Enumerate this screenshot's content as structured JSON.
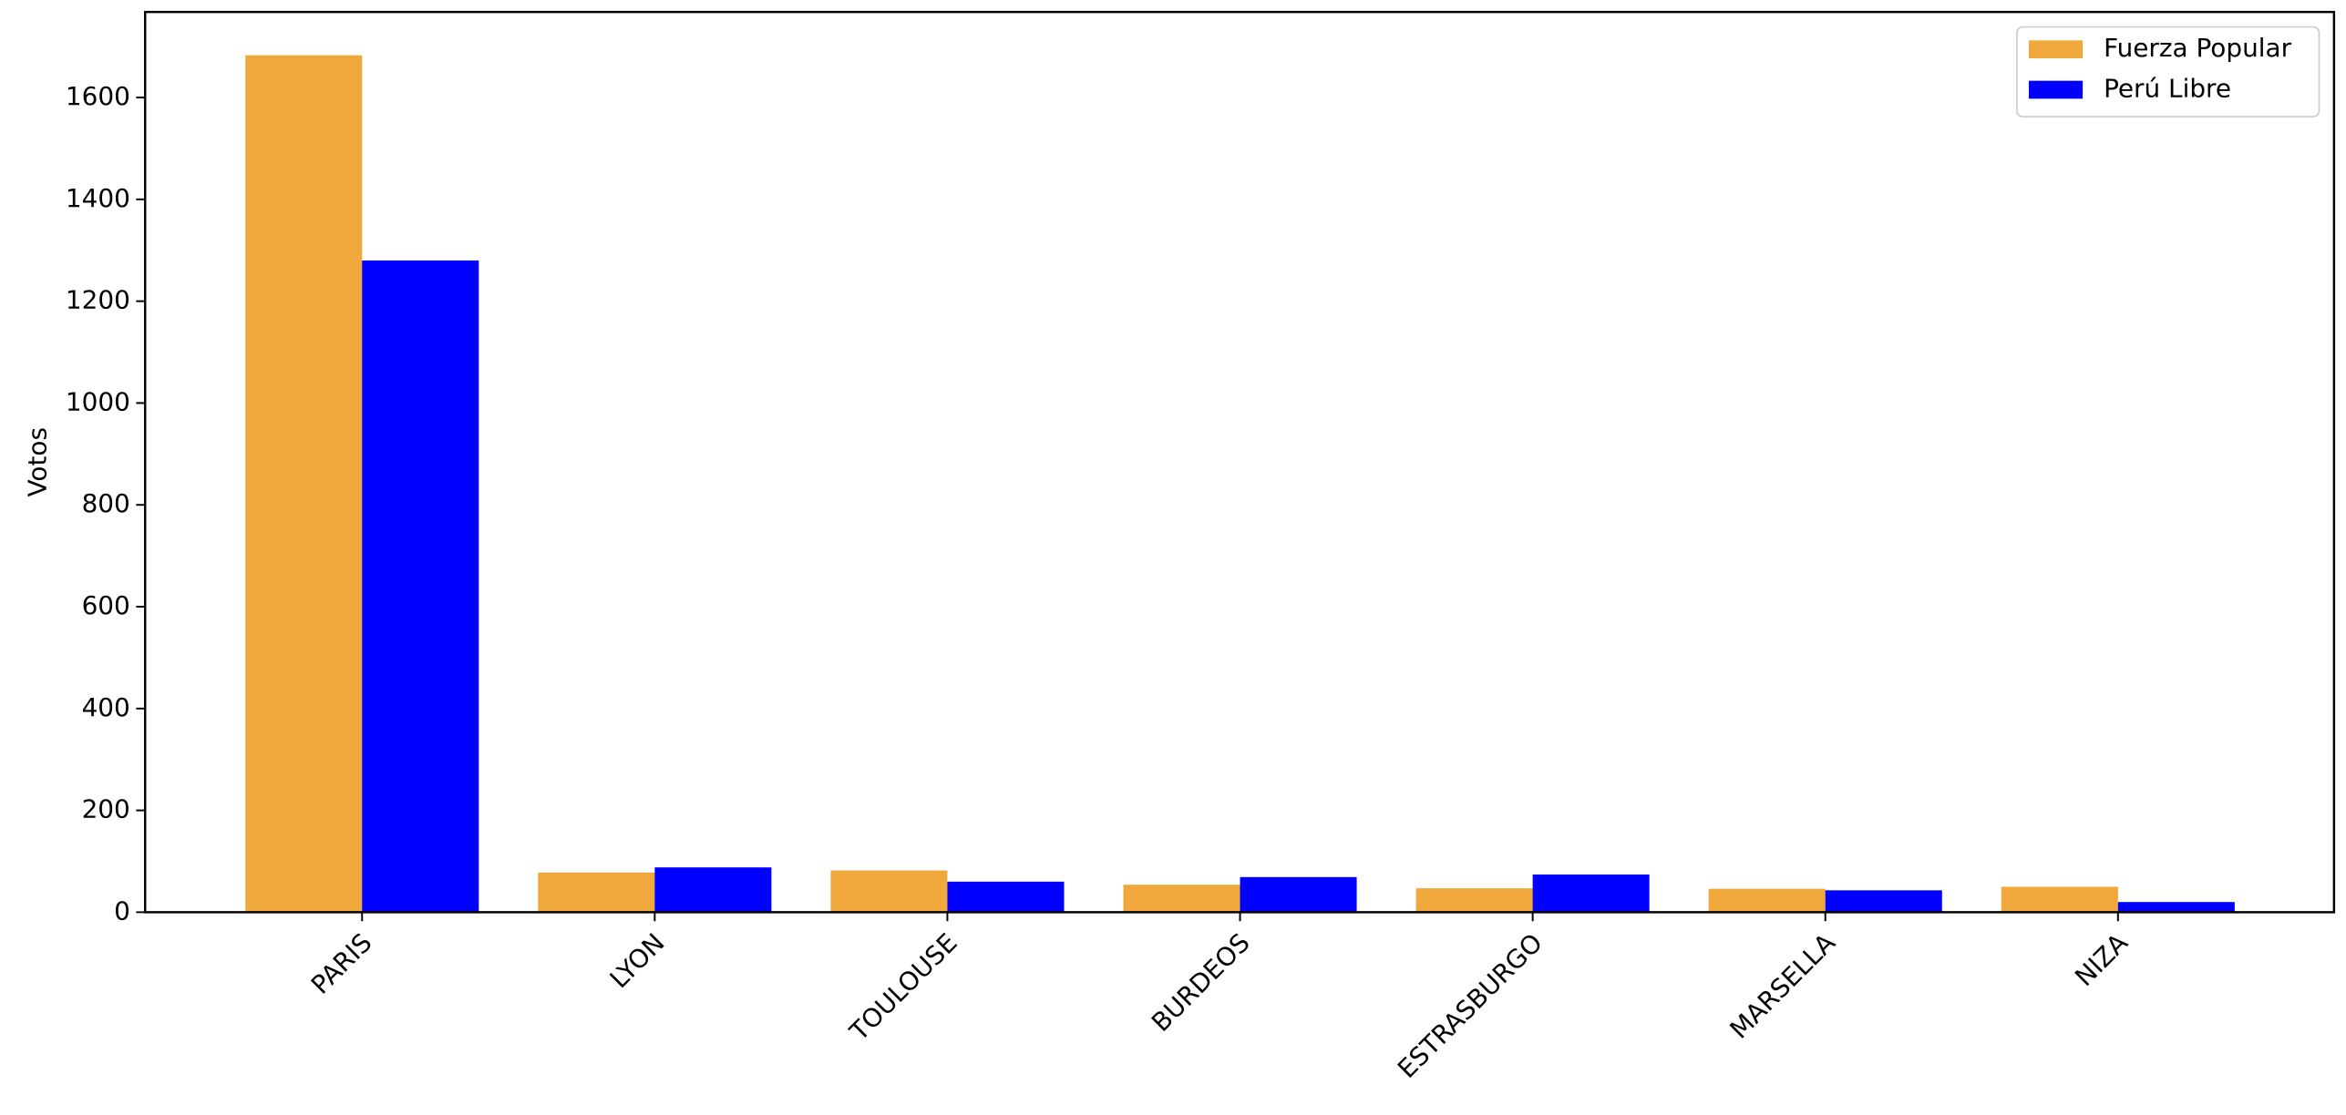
{
  "chart_data": {
    "type": "bar",
    "y_label": "Votos",
    "categories": [
      "PARIS",
      "LYON",
      "TOULOUSE",
      "BURDEOS",
      "ESTRASBURGO",
      "MARSELLA",
      "NIZA"
    ],
    "series": [
      {
        "name": "Fuerza Popular",
        "color": "#f0a83c",
        "values": [
          1683,
          78,
          82,
          54,
          47,
          46,
          50
        ]
      },
      {
        "name": "Perú Libre",
        "color": "#0000ff",
        "values": [
          1280,
          88,
          60,
          69,
          74,
          43,
          20
        ]
      }
    ],
    "ylim": [
      0,
      1768
    ],
    "yticks": [
      0,
      200,
      400,
      600,
      800,
      1000,
      1200,
      1400,
      1600
    ],
    "legend": "upper right"
  }
}
